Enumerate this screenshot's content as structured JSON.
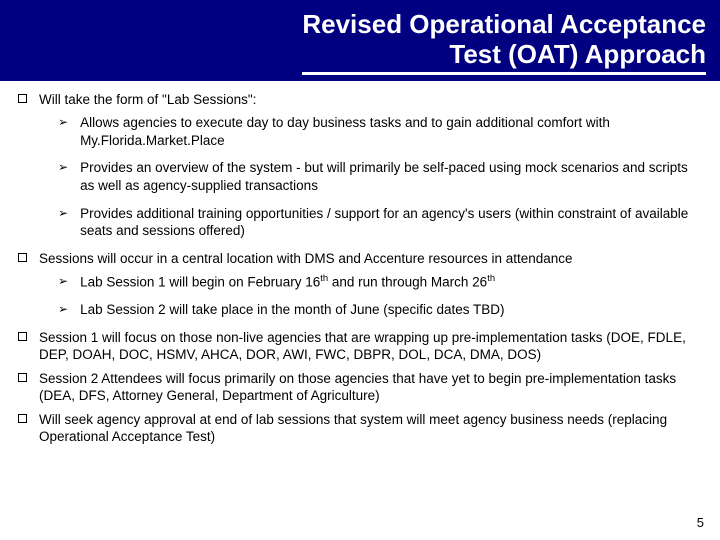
{
  "header": {
    "title_line1": "Revised Operational Acceptance",
    "title_line2": "Test (OAT) Approach",
    "bg_color": "#000080",
    "text_color": "#ffffff"
  },
  "bullets": [
    {
      "text": "Will take the form of \"Lab Sessions\":",
      "sub": [
        "Allows agencies to execute day to day business tasks and to gain additional comfort with My.Florida.Market.Place",
        "Provides an overview of the system - but will primarily be self-paced using mock scenarios and scripts as well as agency-supplied transactions",
        "Provides additional training opportunities / support for an agency's users (within constraint of available seats and sessions offered)"
      ]
    },
    {
      "text": "Sessions will occur in a central location with DMS and Accenture resources in attendance",
      "sub": [
        "Lab Session 1 will begin on February 16<sup>th</sup> and run through March 26<sup>th</sup>",
        "Lab Session 2 will take place in the month of June (specific dates TBD)"
      ]
    },
    {
      "text": "Session 1 will focus on those non-live agencies that are wrapping up pre-implementation tasks (DOE, FDLE, DEP, DOAH, DOC, HSMV, AHCA, DOR, AWI, FWC, DBPR, DOL, DCA, DMA, DOS)",
      "sub": []
    },
    {
      "text": "Session 2 Attendees will focus primarily on those agencies that have yet to begin pre-implementation tasks (DEA, DFS, Attorney General, Department of Agriculture)",
      "sub": []
    },
    {
      "text": "Will seek agency approval at end of lab sessions that system will meet agency business needs (replacing Operational Acceptance Test)",
      "sub": []
    }
  ],
  "page_number": "5"
}
